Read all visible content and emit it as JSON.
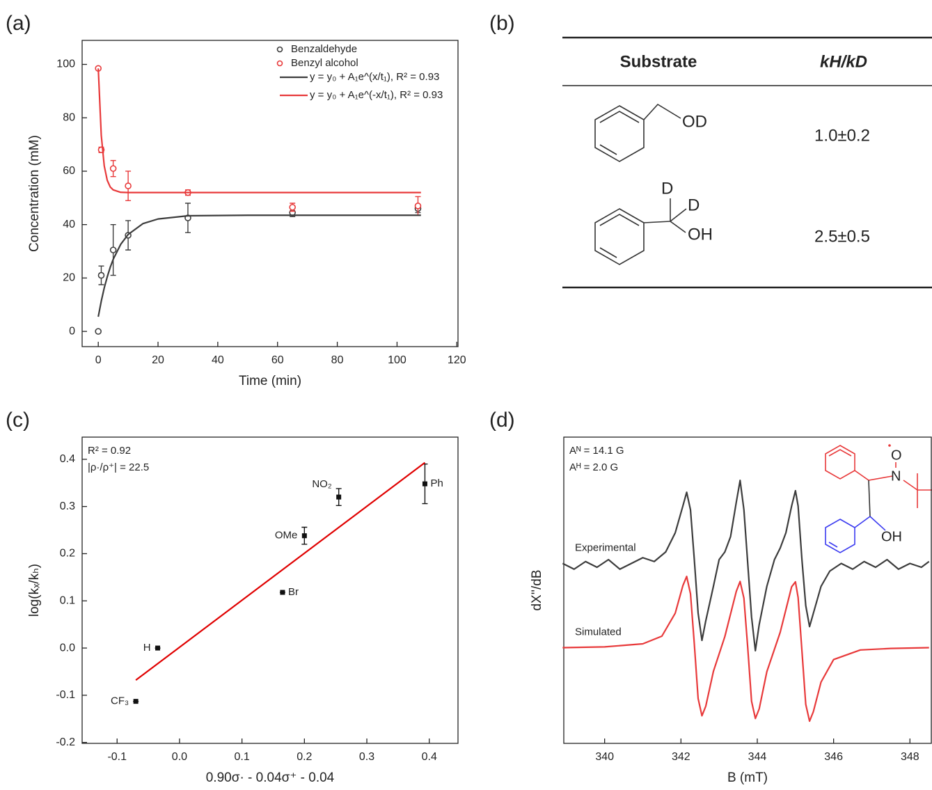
{
  "chart_data": [
    {
      "type": "scatter",
      "panel_label": "(a)",
      "x_label": "Time (min)",
      "y_label": "Concentration (mM)",
      "xlim": [
        -5.4,
        120.4
      ],
      "ylim": [
        -5.7,
        109
      ],
      "xticks": [
        0,
        20,
        40,
        60,
        80,
        100,
        120
      ],
      "yticks": [
        0,
        20,
        40,
        60,
        80,
        100
      ],
      "legend": "upper right",
      "series": [
        {
          "name": "Benzaldehyde",
          "color": "#3c3c3c",
          "marker": "circle",
          "x": [
            0,
            1,
            5,
            10,
            30,
            65,
            107
          ],
          "values": [
            0,
            21,
            30.5,
            36,
            42.5,
            44.5,
            46
          ],
          "errors": [
            0,
            3.5,
            9.5,
            5.5,
            5.5,
            1.5,
            1.5
          ]
        },
        {
          "name": "Benzyl alcohol",
          "color": "#e8393a",
          "marker": "circle",
          "x": [
            0,
            1,
            5,
            10,
            30,
            65,
            107
          ],
          "values": [
            98.5,
            68,
            61,
            54.5,
            52,
            46.5,
            47
          ],
          "errors": [
            0.5,
            1,
            3,
            5.5,
            1,
            1.5,
            3.5
          ]
        },
        {
          "name": "y = y₀ + A₁e^(x/t₁), R² = 0.93",
          "color": "#3c3c3c",
          "marker": "none",
          "x": [
            0,
            1,
            2,
            3,
            4,
            5,
            7.5,
            10,
            15,
            20,
            30,
            50,
            80,
            108
          ],
          "values": [
            5.5,
            11.3,
            16.3,
            20.4,
            24.0,
            27.0,
            32.6,
            36.3,
            40.4,
            42.1,
            43.3,
            43.5,
            43.5,
            43.5
          ]
        },
        {
          "name": "y = y₀ + A₁e^(-x/t₁), R² = 0.93",
          "color": "#e8393a",
          "marker": "none",
          "x": [
            0,
            1,
            2,
            3,
            4,
            5,
            7.5,
            10,
            15,
            20,
            30,
            50,
            80,
            108
          ],
          "values": [
            98.5,
            73.5,
            62,
            56.6,
            54.1,
            53,
            52.1,
            52,
            52,
            52,
            52,
            52,
            52,
            52
          ]
        }
      ]
    },
    {
      "type": "scatter",
      "panel_label": "(c)",
      "x_label": "0.90σ· - 0.04σ⁺ - 0.04",
      "y_label": "log(kₓ/kₕ)",
      "xlim": [
        -0.156,
        0.446
      ],
      "ylim": [
        -0.202,
        0.447
      ],
      "xticks": [
        -0.1,
        {
          "value": 0,
          "label": "0.0"
        },
        0.1,
        0.2,
        0.3,
        0.4
      ],
      "yticks": [
        -0.2,
        -0.1,
        {
          "value": 0,
          "label": "0.0"
        },
        0.1,
        0.2,
        0.3,
        0.4
      ],
      "legend": "none",
      "annotations": [
        "R² = 0.92",
        "|ρ·/ρ⁺| = 22.5"
      ],
      "series": [
        {
          "color": "#111111",
          "marker": "square",
          "x": [
            -0.07,
            -0.035,
            0.165,
            0.2,
            0.255,
            0.393
          ],
          "values": [
            -0.113,
            0,
            0.118,
            0.238,
            0.32,
            0.348
          ],
          "errors": [
            0,
            0,
            0,
            0.018,
            0.018,
            0.042
          ],
          "point_labels": [
            "CF₃",
            "H",
            "Br",
            "OMe",
            "NO₂",
            "Ph"
          ]
        },
        {
          "color": "#e00000",
          "marker": "none",
          "x": [
            -0.07,
            0.393
          ],
          "values": [
            -0.068,
            0.393
          ]
        }
      ]
    },
    {
      "type": "line",
      "panel_label": "(d)",
      "x_label": "B (mT)",
      "y_label": "dX''/dB",
      "xlim": [
        338.93,
        348.56
      ],
      "ylim": [
        -2.5,
        5.5
      ],
      "xticks": [
        340,
        342,
        344,
        346,
        348
      ],
      "legend": "inline",
      "annotations": [
        "Aᴺ = 14.1 G",
        "Aᴴ = 2.0 G"
      ],
      "structure_labels": [
        "O",
        "N",
        "OH"
      ],
      "series": [
        {
          "name": "Experimental",
          "color": "#3c3c3c",
          "marker": "none",
          "x": [
            338.9,
            339.2,
            339.5,
            339.8,
            340.1,
            340.4,
            340.7,
            341.0,
            341.3,
            341.6,
            341.85,
            342.05,
            342.15,
            342.25,
            342.35,
            342.45,
            342.55,
            342.65,
            342.85,
            343.0,
            343.15,
            343.3,
            343.45,
            343.55,
            343.65,
            343.75,
            343.85,
            343.95,
            344.05,
            344.25,
            344.45,
            344.6,
            344.75,
            344.9,
            345.0,
            345.07,
            345.17,
            345.27,
            345.37,
            345.47,
            345.67,
            345.9,
            346.2,
            346.5,
            346.8,
            347.1,
            347.4,
            347.7,
            348.0,
            348.3,
            348.5
          ],
          "values": [
            2.2,
            2.05,
            2.25,
            2.1,
            2.3,
            2.05,
            2.2,
            2.35,
            2.25,
            2.5,
            3.0,
            3.7,
            4.06,
            3.6,
            2.3,
            0.9,
            0.19,
            0.7,
            1.6,
            2.3,
            2.5,
            2.9,
            3.8,
            4.37,
            3.6,
            2.2,
            0.8,
            -0.08,
            0.6,
            1.6,
            2.3,
            2.6,
            3.0,
            3.7,
            4.1,
            3.7,
            2.3,
            1.1,
            0.55,
            0.9,
            1.6,
            2.0,
            2.2,
            2.05,
            2.25,
            2.1,
            2.3,
            2.05,
            2.2,
            2.1,
            2.25
          ]
        },
        {
          "name": "Simulated",
          "color": "#e8393a",
          "marker": "none",
          "x": [
            338.9,
            340.0,
            341.0,
            341.5,
            341.85,
            342.05,
            342.15,
            342.25,
            342.35,
            342.45,
            342.55,
            342.65,
            342.85,
            343.15,
            343.45,
            343.55,
            343.65,
            343.75,
            343.85,
            343.95,
            344.05,
            344.25,
            344.6,
            344.9,
            345.0,
            345.07,
            345.17,
            345.27,
            345.37,
            345.47,
            345.67,
            346.0,
            346.7,
            347.5,
            348.5
          ],
          "values": [
            0,
            0.02,
            0.1,
            0.3,
            0.9,
            1.62,
            1.86,
            1.41,
            0.1,
            -1.33,
            -1.78,
            -1.53,
            -0.62,
            0.29,
            1.47,
            1.73,
            1.29,
            0,
            -1.4,
            -1.85,
            -1.6,
            -0.63,
            0.4,
            1.59,
            1.72,
            1.31,
            -0.08,
            -1.48,
            -1.92,
            -1.67,
            -0.9,
            -0.31,
            -0.06,
            -0.02,
            0
          ]
        }
      ]
    }
  ],
  "table": {
    "panel_label": "(b)",
    "columns": [
      "Substrate",
      "kH/kD"
    ],
    "rows": [
      {
        "structure_labels": [
          "OD"
        ],
        "value": "1.0±0.2"
      },
      {
        "structure_labels": [
          "D",
          "D",
          "OH"
        ],
        "value": "2.5±0.5"
      }
    ]
  }
}
